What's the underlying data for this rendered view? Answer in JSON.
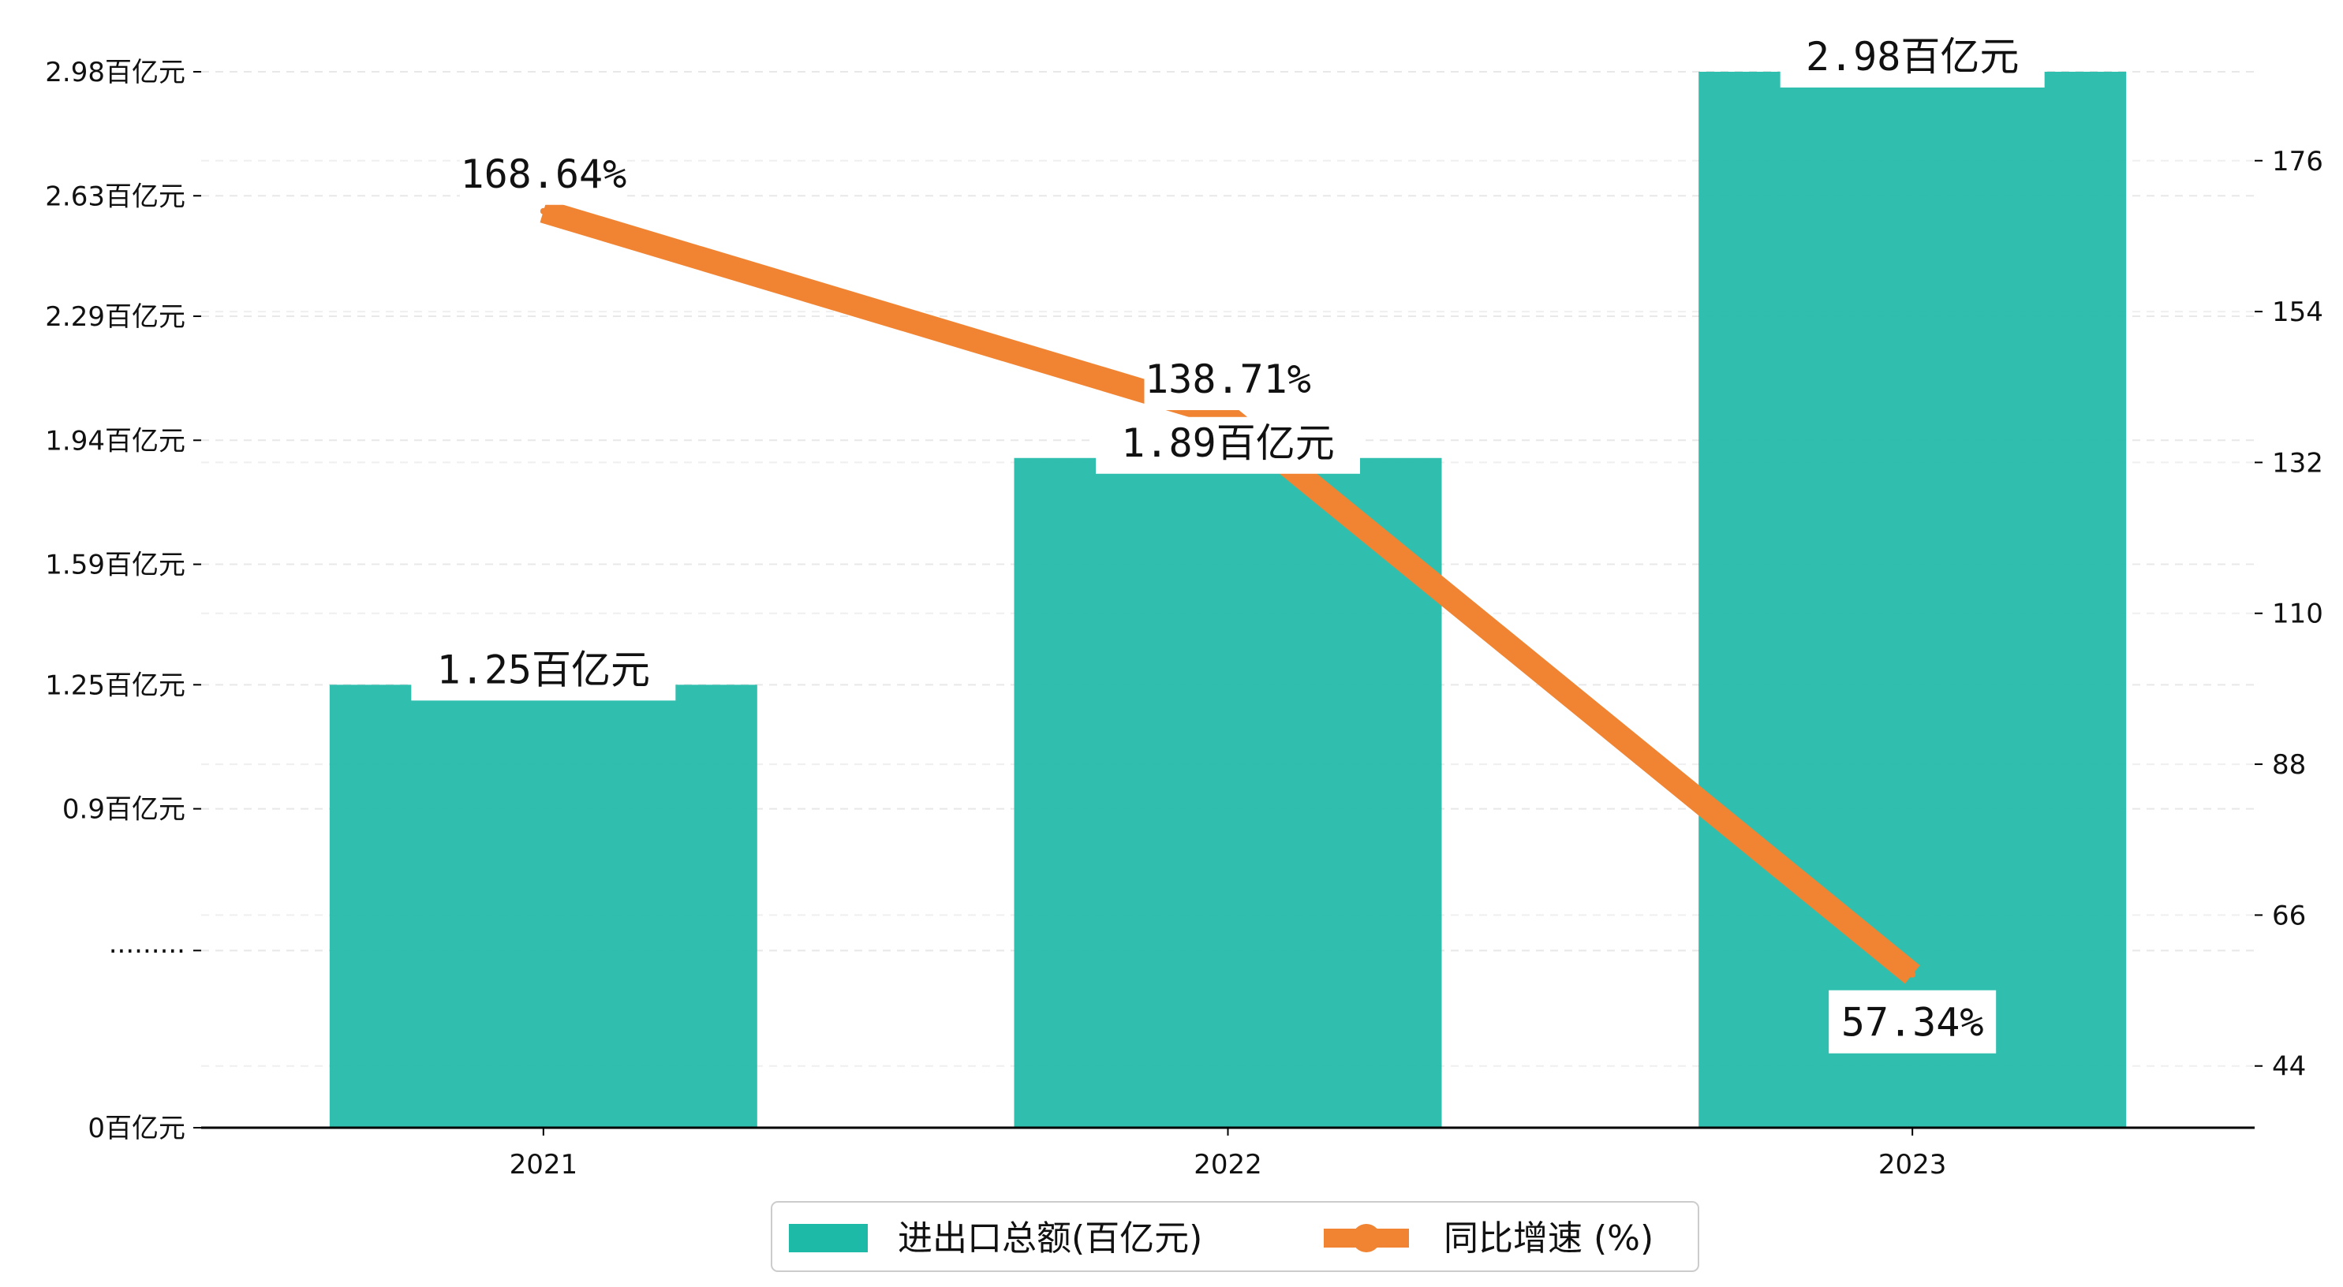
{
  "chart_data": {
    "type": "bar",
    "categories": [
      "2021",
      "2022",
      "2023"
    ],
    "series": [
      {
        "name": "进出口总额(百亿元)",
        "type": "bar",
        "axis": "left",
        "values": [
          1.25,
          1.89,
          2.98
        ],
        "value_labels": [
          "1.25百亿元",
          "1.89百亿元",
          "2.98百亿元"
        ],
        "color": "#1ebaa8"
      },
      {
        "name": "同比增速 (%)",
        "type": "line",
        "axis": "right",
        "values": [
          168.64,
          138.71,
          57.34
        ],
        "value_labels": [
          "168.64%",
          "138.71%",
          "57.34%"
        ],
        "color": "#f08432"
      }
    ],
    "y_left": {
      "ylim": [
        0,
        3.0
      ],
      "ticks": [
        0,
        0.5,
        0.9,
        1.25,
        1.59,
        1.94,
        2.29,
        2.63,
        2.98
      ],
      "tick_labels": [
        "0百亿元",
        "·········",
        "0.9百亿元",
        "1.25百亿元",
        "1.59百亿元",
        "1.94百亿元",
        "2.29百亿元",
        "2.63百亿元",
        "2.98百亿元"
      ]
    },
    "y_right": {
      "ylim": [
        35,
        190
      ],
      "ticks": [
        44,
        66,
        88,
        110,
        132,
        154,
        176
      ],
      "tick_labels": [
        "44",
        "66",
        "88",
        "110",
        "132",
        "154",
        "176"
      ]
    },
    "grid": true,
    "legend_position": "bottom-center"
  }
}
